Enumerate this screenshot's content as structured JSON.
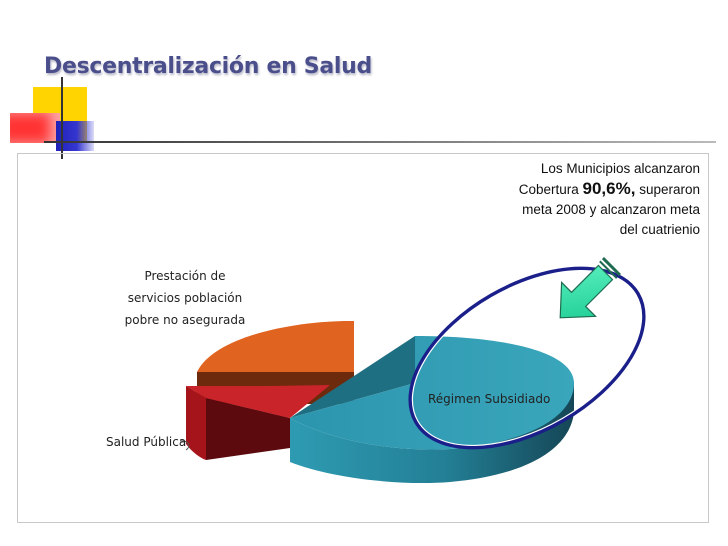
{
  "slide": {
    "title": "Descentralización en Salud"
  },
  "note": {
    "line1": "Los Municipios alcanzaron",
    "line2_pre": "Cobertura ",
    "line2_value": "90,6%,",
    "line2_post": " superaron",
    "line3": "meta 2008 y alcanzaron meta",
    "line4": "del cuatrienio"
  },
  "chart_data": {
    "type": "pie",
    "categories": [
      "Régimen Subsidiado",
      "Prestación de servicios población pobre no asegurada",
      "Salud Pública"
    ],
    "values": [
      57,
      25,
      18
    ],
    "labels": {
      "regimen": "Régimen Subsidiado",
      "prestacion_1": "Prestación de",
      "prestacion_2": "servicios población",
      "prestacion_3": "pobre no asegurada",
      "salud": "Salud Pública"
    },
    "colors": [
      "#2d97ad",
      "#e0641f",
      "#c41e22"
    ]
  }
}
